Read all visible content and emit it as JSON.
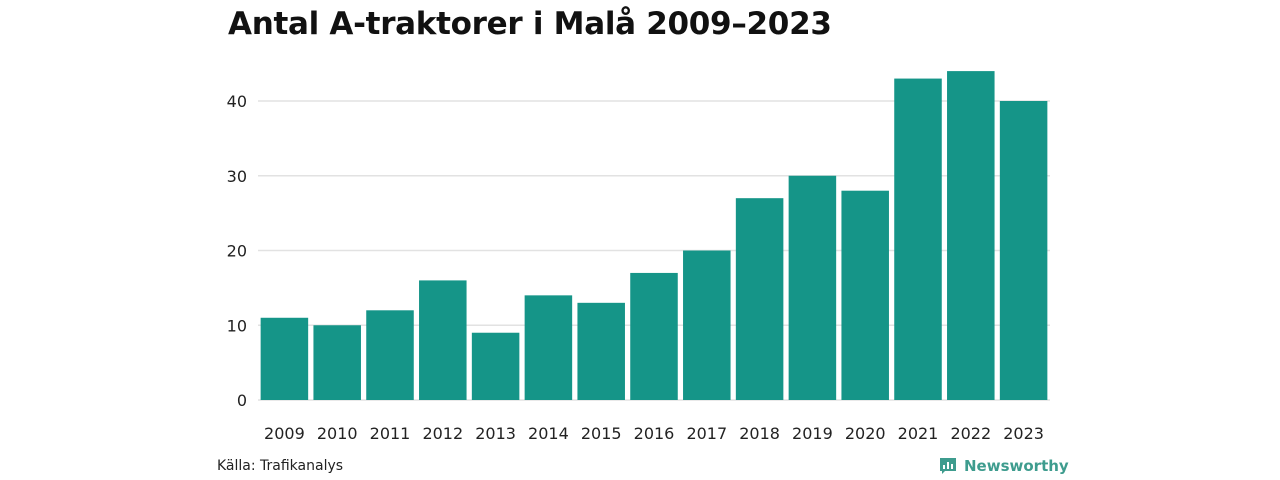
{
  "chart_data": {
    "type": "bar",
    "title": "Antal A-traktorer i Malå 2009–2023",
    "categories": [
      "2009",
      "2010",
      "2011",
      "2012",
      "2013",
      "2014",
      "2015",
      "2016",
      "2017",
      "2018",
      "2019",
      "2020",
      "2021",
      "2022",
      "2023"
    ],
    "values": [
      11,
      10,
      12,
      16,
      9,
      14,
      13,
      17,
      20,
      27,
      30,
      28,
      43,
      44,
      40
    ],
    "yticks": [
      "0",
      "10",
      "20",
      "30",
      "40"
    ],
    "ylim": [
      0,
      45
    ],
    "xlabel": "",
    "ylabel": "",
    "grid": true,
    "bar_color": "#159588"
  },
  "footer": {
    "source": "Källa: Trafikanalys",
    "brand": "Newsworthy",
    "brand_color": "#3e9c8e"
  },
  "icons": {
    "brand_logo": "newsworthy-logo-icon"
  }
}
